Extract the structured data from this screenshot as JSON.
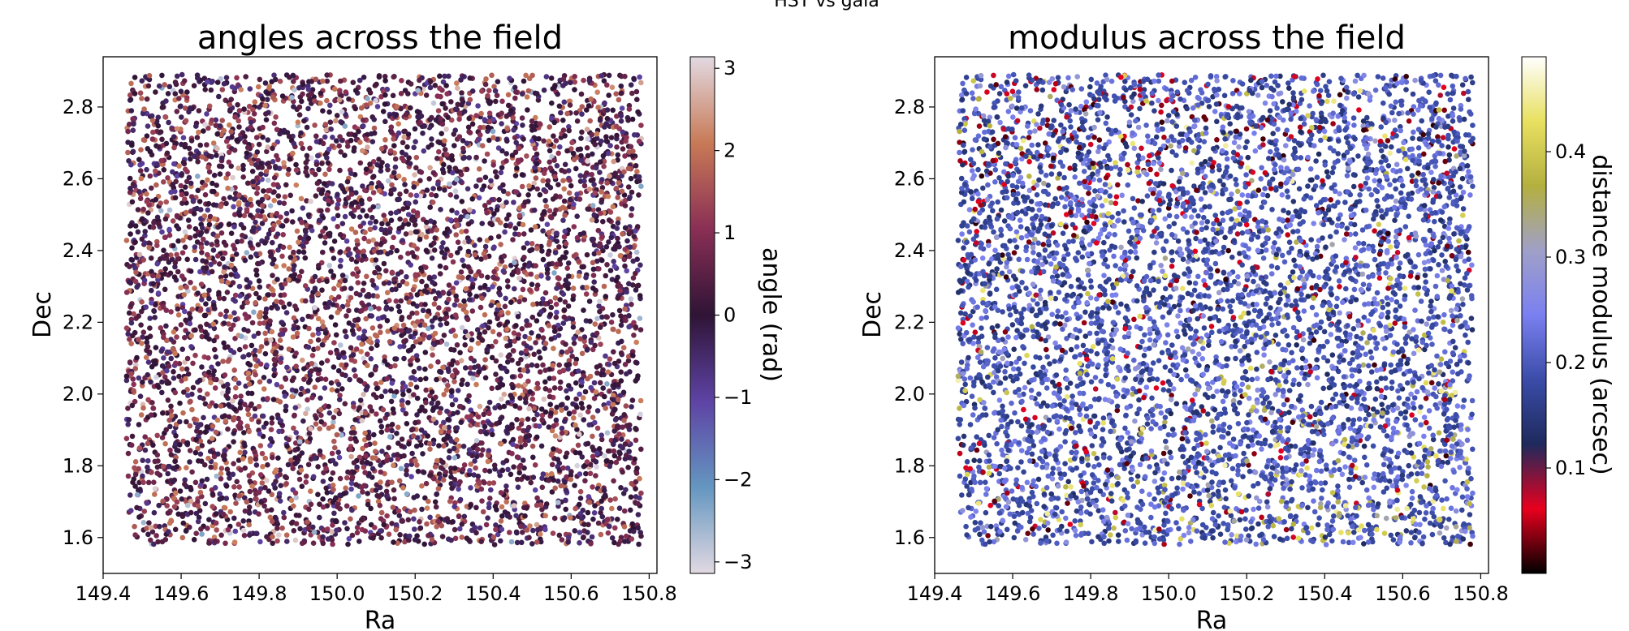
{
  "figure": {
    "suptitle": "HST vs gaia"
  },
  "chart_data": [
    {
      "type": "scatter",
      "title": "angles across the field",
      "xlabel": "Ra",
      "ylabel": "Dec",
      "xlim": [
        149.4,
        150.82
      ],
      "ylim": [
        1.5,
        2.94
      ],
      "xticks": [
        149.4,
        149.6,
        149.8,
        150.0,
        150.2,
        150.4,
        150.6,
        150.8
      ],
      "xtick_labels": [
        "149.4",
        "149.6",
        "149.8",
        "150.0",
        "150.2",
        "150.4",
        "150.6",
        "150.8"
      ],
      "yticks": [
        1.6,
        1.8,
        2.0,
        2.2,
        2.4,
        2.6,
        2.8
      ],
      "ytick_labels": [
        "1.6",
        "1.8",
        "2.0",
        "2.2",
        "2.4",
        "2.6",
        "2.8"
      ],
      "data_extent": {
        "ra": [
          149.46,
          150.78
        ],
        "dec": [
          1.58,
          2.89
        ]
      },
      "n_points": 6000,
      "value_distribution": "concentrated near 0 (dark purple), tail toward +2 (copper), rare near ±3",
      "colorbar": {
        "label": "angle (rad)",
        "range": [
          -3.14,
          3.14
        ],
        "ticks": [
          -3,
          -2,
          -1,
          0,
          1,
          2,
          3
        ],
        "tick_labels": [
          "−3",
          "−2",
          "−1",
          "0",
          "1",
          "2",
          "3"
        ],
        "colormap": "twilight",
        "stops": [
          "#e2d9e2",
          "#6496c0",
          "#5e43a5",
          "#2f1436",
          "#8a2f55",
          "#c87a56",
          "#e2d9e2"
        ]
      }
    },
    {
      "type": "scatter",
      "title": "modulus across the field",
      "xlabel": "Ra",
      "ylabel": "Dec",
      "xlim": [
        149.4,
        150.82
      ],
      "ylim": [
        1.5,
        2.94
      ],
      "xticks": [
        149.4,
        149.6,
        149.8,
        150.0,
        150.2,
        150.4,
        150.6,
        150.8
      ],
      "xtick_labels": [
        "149.4",
        "149.6",
        "149.8",
        "150.0",
        "150.2",
        "150.4",
        "150.6",
        "150.8"
      ],
      "yticks": [
        1.6,
        1.8,
        2.0,
        2.2,
        2.4,
        2.6,
        2.8
      ],
      "ytick_labels": [
        "1.6",
        "1.8",
        "2.0",
        "2.2",
        "2.4",
        "2.6",
        "2.8"
      ],
      "data_extent": {
        "ra": [
          149.46,
          150.78
        ],
        "dec": [
          1.58,
          2.89
        ]
      },
      "n_points": 6000,
      "value_distribution": "mostly 0.12–0.25 arcsec (blue/periwinkle), red low values clustered in upper-left, yellow high values in lower-right",
      "colorbar": {
        "label": "distance modulus (arcsec)",
        "range": [
          0.0,
          0.49
        ],
        "ticks": [
          0.1,
          0.2,
          0.3,
          0.4
        ],
        "tick_labels": [
          "0.1",
          "0.2",
          "0.3",
          "0.4"
        ],
        "colormap": "gist_stern-like",
        "stops": [
          "#000000",
          "#e8001e",
          "#1e2a5c",
          "#3a4ca8",
          "#7a80f0",
          "#a0a0c8",
          "#b4b040",
          "#e8e060",
          "#ffffff"
        ]
      }
    }
  ]
}
